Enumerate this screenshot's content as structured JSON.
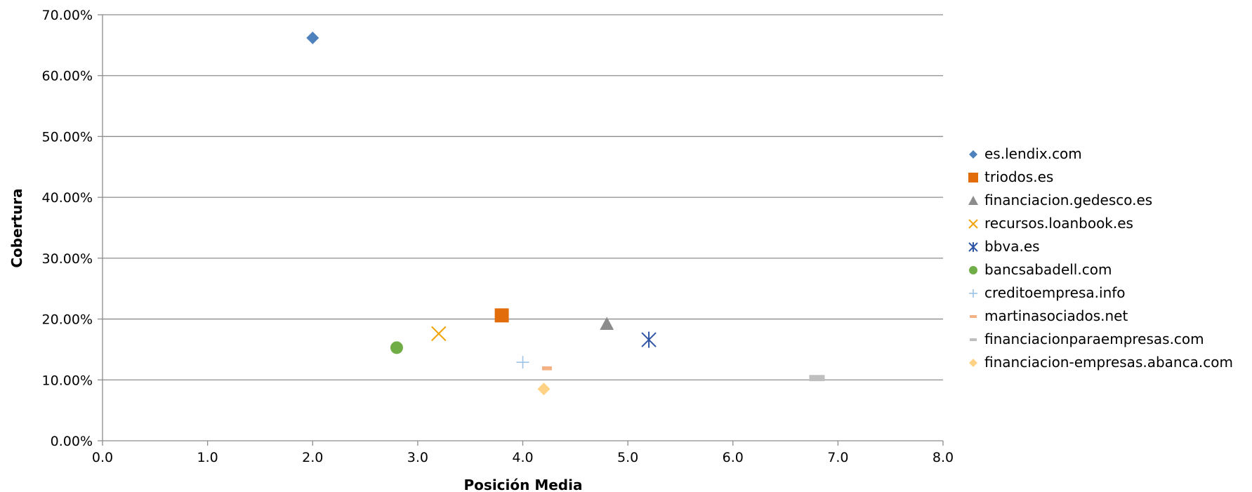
{
  "chart_data": {
    "type": "scatter",
    "xlabel": "Posición Media",
    "ylabel": "Cobertura",
    "xlim": [
      0,
      8
    ],
    "ylim": [
      0,
      70
    ],
    "x_ticks": [
      "0.0",
      "1.0",
      "2.0",
      "3.0",
      "4.0",
      "5.0",
      "6.0",
      "7.0",
      "8.0"
    ],
    "y_ticks": [
      "0.00%",
      "10.00%",
      "20.00%",
      "30.00%",
      "40.00%",
      "50.00%",
      "60.00%",
      "70.00%"
    ],
    "grid": "horizontal",
    "legend_position": "right",
    "series": [
      {
        "name": "es.lendix.com",
        "x": 2.0,
        "y": 66.2,
        "marker": "diamond",
        "color": "#4F81BD"
      },
      {
        "name": "triodos.es",
        "x": 3.8,
        "y": 20.6,
        "marker": "square",
        "color": "#E36C0A"
      },
      {
        "name": "financiacion.gedesco.es",
        "x": 4.8,
        "y": 19.2,
        "marker": "triangle",
        "color": "#8C8C8C"
      },
      {
        "name": "recursos.loanbook.es",
        "x": 3.2,
        "y": 17.6,
        "marker": "x",
        "color": "#F0A30A"
      },
      {
        "name": "bbva.es",
        "x": 5.2,
        "y": 16.6,
        "marker": "star",
        "color": "#2F55A4"
      },
      {
        "name": "bancsabadell.com",
        "x": 2.8,
        "y": 15.3,
        "marker": "circle",
        "color": "#70AD47"
      },
      {
        "name": "creditoempresa.info",
        "x": 4.0,
        "y": 12.9,
        "marker": "plus",
        "color": "#9DC3E6"
      },
      {
        "name": "martinasociados.net",
        "x": 4.23,
        "y": 11.9,
        "marker": "dash",
        "color": "#F4B183"
      },
      {
        "name": "financiacionparaempresas.com",
        "x": 6.8,
        "y": 10.3,
        "marker": "dash",
        "color": "#BFBFBF"
      },
      {
        "name": "financiacion-empresas.abanca.com",
        "x": 4.2,
        "y": 8.5,
        "marker": "diamond",
        "color": "#FFD285"
      }
    ]
  }
}
